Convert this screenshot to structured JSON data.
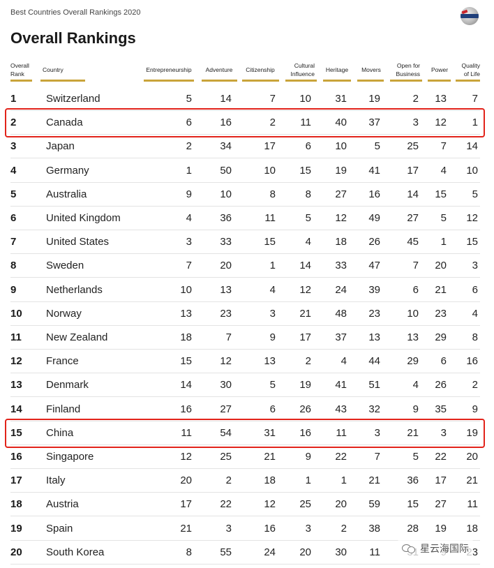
{
  "header": {
    "subtitle": "Best Countries Overall Rankings 2020",
    "title": "Overall Rankings"
  },
  "logo_icon": "globe-logo-icon",
  "columns": {
    "rank": [
      "Overall",
      "Rank"
    ],
    "country": "Country",
    "entrepreneurship": "Entrepreneurship",
    "adventure": "Adventure",
    "citizenship": "Citizenship",
    "cultural": [
      "Cultural",
      "Influence"
    ],
    "heritage": "Heritage",
    "movers": "Movers",
    "business": [
      "Open for",
      "Business"
    ],
    "power": "Power",
    "quality": [
      "Quality",
      "of Life"
    ]
  },
  "rows": [
    {
      "rank": "1",
      "country": "Switzerland",
      "scores": [
        "5",
        "14",
        "7",
        "10",
        "31",
        "19",
        "2",
        "13",
        "7"
      ]
    },
    {
      "rank": "2",
      "country": "Canada",
      "scores": [
        "6",
        "16",
        "2",
        "11",
        "40",
        "37",
        "3",
        "12",
        "1"
      ]
    },
    {
      "rank": "3",
      "country": "Japan",
      "scores": [
        "2",
        "34",
        "17",
        "6",
        "10",
        "5",
        "25",
        "7",
        "14"
      ]
    },
    {
      "rank": "4",
      "country": "Germany",
      "scores": [
        "1",
        "50",
        "10",
        "15",
        "19",
        "41",
        "17",
        "4",
        "10"
      ]
    },
    {
      "rank": "5",
      "country": "Australia",
      "scores": [
        "9",
        "10",
        "8",
        "8",
        "27",
        "16",
        "14",
        "15",
        "5"
      ]
    },
    {
      "rank": "6",
      "country": "United Kingdom",
      "scores": [
        "4",
        "36",
        "11",
        "5",
        "12",
        "49",
        "27",
        "5",
        "12"
      ]
    },
    {
      "rank": "7",
      "country": "United States",
      "scores": [
        "3",
        "33",
        "15",
        "4",
        "18",
        "26",
        "45",
        "1",
        "15"
      ]
    },
    {
      "rank": "8",
      "country": "Sweden",
      "scores": [
        "7",
        "20",
        "1",
        "14",
        "33",
        "47",
        "7",
        "20",
        "3"
      ]
    },
    {
      "rank": "9",
      "country": "Netherlands",
      "scores": [
        "10",
        "13",
        "4",
        "12",
        "24",
        "39",
        "6",
        "21",
        "6"
      ]
    },
    {
      "rank": "10",
      "country": "Norway",
      "scores": [
        "13",
        "23",
        "3",
        "21",
        "48",
        "23",
        "10",
        "23",
        "4"
      ]
    },
    {
      "rank": "11",
      "country": "New Zealand",
      "scores": [
        "18",
        "7",
        "9",
        "17",
        "37",
        "13",
        "13",
        "29",
        "8"
      ]
    },
    {
      "rank": "12",
      "country": "France",
      "scores": [
        "15",
        "12",
        "13",
        "2",
        "4",
        "44",
        "29",
        "6",
        "16"
      ]
    },
    {
      "rank": "13",
      "country": "Denmark",
      "scores": [
        "14",
        "30",
        "5",
        "19",
        "41",
        "51",
        "4",
        "26",
        "2"
      ]
    },
    {
      "rank": "14",
      "country": "Finland",
      "scores": [
        "16",
        "27",
        "6",
        "26",
        "43",
        "32",
        "9",
        "35",
        "9"
      ]
    },
    {
      "rank": "15",
      "country": "China",
      "scores": [
        "11",
        "54",
        "31",
        "16",
        "11",
        "3",
        "21",
        "3",
        "19"
      ]
    },
    {
      "rank": "16",
      "country": "Singapore",
      "scores": [
        "12",
        "25",
        "21",
        "9",
        "22",
        "7",
        "5",
        "22",
        "20"
      ]
    },
    {
      "rank": "17",
      "country": "Italy",
      "scores": [
        "20",
        "2",
        "18",
        "1",
        "1",
        "21",
        "36",
        "17",
        "21"
      ]
    },
    {
      "rank": "18",
      "country": "Austria",
      "scores": [
        "17",
        "22",
        "12",
        "25",
        "20",
        "59",
        "15",
        "27",
        "11"
      ]
    },
    {
      "rank": "19",
      "country": "Spain",
      "scores": [
        "21",
        "3",
        "16",
        "3",
        "2",
        "38",
        "28",
        "19",
        "18"
      ]
    },
    {
      "rank": "20",
      "country": "South Korea",
      "scores": [
        "8",
        "55",
        "24",
        "20",
        "30",
        "11",
        "31",
        "9",
        "23"
      ]
    }
  ],
  "highlight_color": "#e2231a",
  "highlighted_ranks": [
    "2",
    "15"
  ],
  "watermark": {
    "icon": "wechat-icon",
    "text": "星云海国际"
  }
}
